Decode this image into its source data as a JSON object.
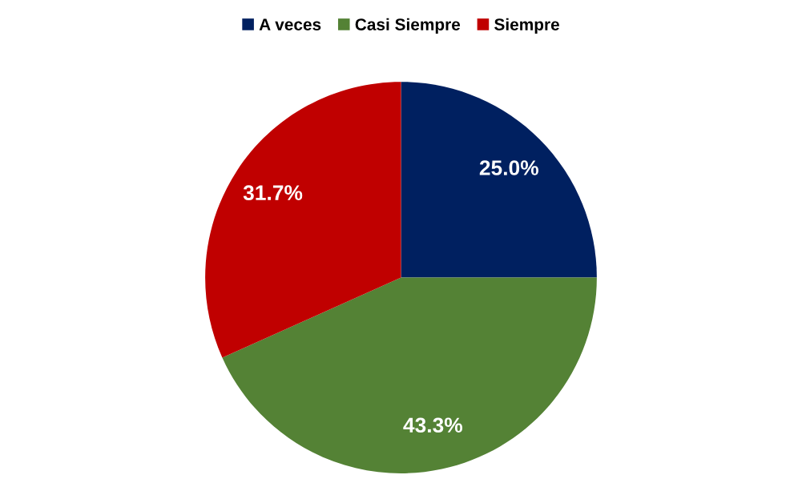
{
  "chart_data": {
    "type": "pie",
    "categories": [
      "A veces",
      "Casi Siempre",
      "Siempre"
    ],
    "values": [
      25.0,
      43.3,
      31.7
    ],
    "colors": [
      "#002060",
      "#548235",
      "#c00000"
    ],
    "value_labels": [
      "25.0%",
      "43.3%",
      "31.7%"
    ],
    "legend": "top"
  }
}
